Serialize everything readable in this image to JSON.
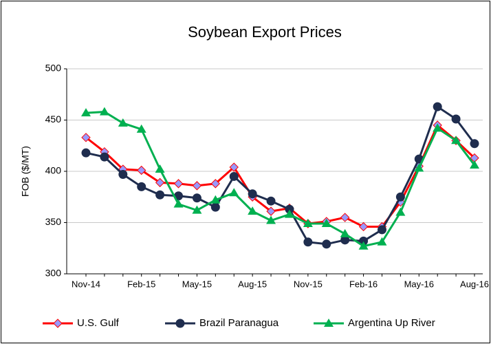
{
  "chart_data": {
    "type": "line",
    "title": "Soybean Export Prices",
    "y_label": "FOB ($/MT)",
    "categories": [
      "Nov-14",
      null,
      null,
      "Feb-15",
      null,
      null,
      "May-15",
      null,
      null,
      "Aug-15",
      null,
      null,
      "Nov-15",
      null,
      null,
      "Feb-16",
      null,
      null,
      "May-16",
      null,
      null,
      "Aug-16"
    ],
    "series": [
      {
        "name": "U.S. Gulf",
        "color": "#ff0000",
        "marker": "diamond",
        "marker_color": "#9999ff",
        "values": [
          433,
          419,
          402,
          401,
          389,
          388,
          386,
          388,
          404,
          375,
          361,
          364,
          349,
          351,
          355,
          346,
          346,
          370,
          405,
          445,
          430,
          413
        ]
      },
      {
        "name": "Brazil Paranagua",
        "color": "#1f2d4e",
        "marker": "circle",
        "marker_color": "#1f2d4e",
        "values": [
          418,
          414,
          397,
          385,
          377,
          376,
          374,
          365,
          395,
          378,
          371,
          363,
          331,
          329,
          333,
          332,
          343,
          375,
          412,
          463,
          451,
          427
        ]
      },
      {
        "name": "Argentina Up River",
        "color": "#00b050",
        "marker": "triangle",
        "marker_color": "#00b050",
        "values": [
          457,
          458,
          447,
          441,
          402,
          368,
          362,
          372,
          379,
          361,
          352,
          358,
          349,
          349,
          339,
          327,
          331,
          360,
          403,
          442,
          430,
          406
        ]
      }
    ],
    "ylim": [
      300,
      500
    ],
    "yticks": [
      300,
      350,
      400,
      450,
      500
    ],
    "grid": true,
    "legend": "bottom"
  }
}
